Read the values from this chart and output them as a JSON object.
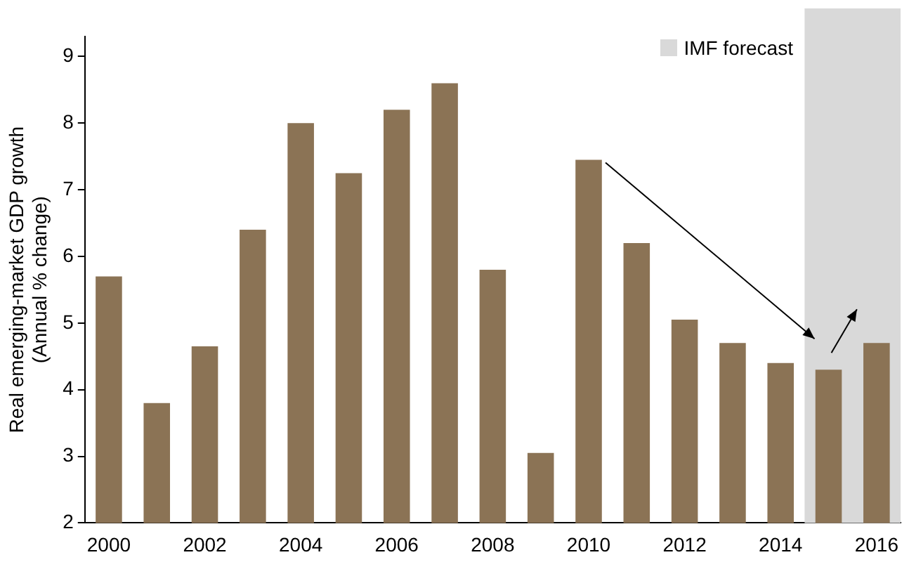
{
  "chart_data": {
    "type": "bar",
    "ylabel": "Real emerging-market GDP growth (Annual % change)",
    "categories": [
      "2000",
      null,
      "2002",
      null,
      "2004",
      null,
      "2006",
      null,
      "2008",
      null,
      "2010",
      null,
      "2012",
      null,
      "2014",
      null,
      "2016"
    ],
    "values": [
      5.7,
      3.8,
      4.65,
      6.4,
      8.0,
      7.25,
      8.2,
      8.6,
      5.8,
      3.05,
      7.45,
      6.2,
      5.05,
      4.7,
      4.4,
      4.3,
      4.7
    ],
    "color": "#8b7355",
    "ylim": [
      2,
      9.3
    ],
    "yticks": [
      2,
      3,
      4,
      5,
      6,
      7,
      8,
      9
    ],
    "bands": [
      {
        "axis": "x",
        "from": "2014",
        "to": "2016",
        "label": "IMF forecast",
        "color": "#d9d9d9"
      }
    ],
    "grid": false,
    "legend": "top right"
  }
}
